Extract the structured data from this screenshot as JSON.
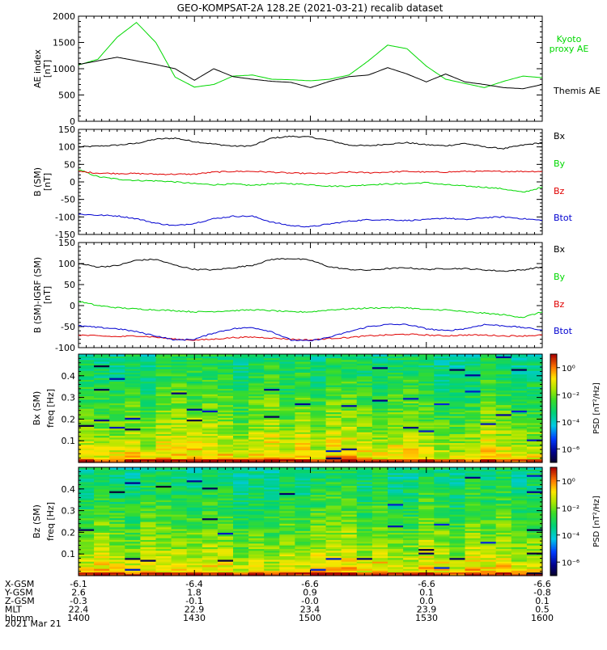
{
  "title": "GEO-KOMPSAT-2A 128.2E (2021-03-21) recalib dataset",
  "date_label": "2021 Mar 21",
  "colors": {
    "black": "#000000",
    "green": "#00d800",
    "red": "#e00000",
    "blue": "#0000d0"
  },
  "ephemeris": {
    "rows": [
      {
        "label": "X-GSM",
        "values": [
          "-6.1",
          "-6.4",
          "-6.6",
          "-6.6",
          "-6.6"
        ]
      },
      {
        "label": "Y-GSM",
        "values": [
          "2.6",
          "1.8",
          "0.9",
          "0.1",
          "-0.8"
        ]
      },
      {
        "label": "Z-GSM",
        "values": [
          "-0.3",
          "-0.1",
          "-0.0",
          "0.0",
          "0.1"
        ]
      },
      {
        "label": "MLT",
        "values": [
          "22.4",
          "22.9",
          "23.4",
          "23.9",
          "0.5"
        ]
      },
      {
        "label": "hhmm",
        "values": [
          "1400",
          "1430",
          "1500",
          "1530",
          "1600"
        ]
      }
    ]
  },
  "chart_data": [
    {
      "type": "line",
      "ylabel": "AE index",
      "yunit": "[nT]",
      "ylim": [
        0,
        2000
      ],
      "yticks": [
        "0",
        "500",
        "1000",
        "1500",
        "2000"
      ],
      "x": [
        1400,
        1405,
        1410,
        1415,
        1420,
        1425,
        1430,
        1435,
        1440,
        1445,
        1450,
        1455,
        1500,
        1505,
        1510,
        1515,
        1520,
        1525,
        1530,
        1535,
        1540,
        1545,
        1550,
        1555,
        1600
      ],
      "series": [
        {
          "name": "Kyoto proxy AE",
          "color": "green",
          "values": [
            1070,
            1180,
            1600,
            1880,
            1500,
            840,
            650,
            700,
            860,
            880,
            800,
            790,
            770,
            800,
            880,
            1150,
            1450,
            1380,
            1050,
            800,
            720,
            640,
            760,
            860,
            830
          ]
        },
        {
          "name": "Themis AE",
          "color": "black",
          "values": [
            1080,
            1150,
            1220,
            1150,
            1080,
            1000,
            780,
            1000,
            850,
            800,
            760,
            740,
            640,
            760,
            850,
            880,
            1020,
            900,
            750,
            900,
            750,
            700,
            640,
            620,
            700
          ]
        }
      ]
    },
    {
      "type": "line",
      "ylabel": "B (SM)",
      "yunit": "[nT]",
      "ylim": [
        -150,
        150
      ],
      "yticks": [
        "-150",
        "-100",
        "-50",
        "0",
        "50",
        "100",
        "150"
      ],
      "x": [
        1400,
        1405,
        1410,
        1415,
        1420,
        1425,
        1430,
        1435,
        1440,
        1445,
        1450,
        1455,
        1500,
        1505,
        1510,
        1515,
        1520,
        1525,
        1530,
        1535,
        1540,
        1545,
        1550,
        1555,
        1600
      ],
      "series": [
        {
          "name": "Bx",
          "color": "black",
          "values": [
            100,
            102,
            105,
            110,
            122,
            125,
            115,
            108,
            102,
            103,
            125,
            130,
            128,
            118,
            105,
            103,
            108,
            112,
            106,
            103,
            110,
            100,
            95,
            105,
            112
          ]
        },
        {
          "name": "By",
          "color": "green",
          "values": [
            35,
            15,
            8,
            4,
            3,
            0,
            -5,
            -8,
            -6,
            -10,
            -5,
            -5,
            -8,
            -12,
            -12,
            -8,
            -6,
            -5,
            -2,
            -8,
            -12,
            -15,
            -20,
            -30,
            -15
          ]
        },
        {
          "name": "Bz",
          "color": "red",
          "values": [
            30,
            25,
            24,
            24,
            22,
            22,
            22,
            28,
            30,
            30,
            28,
            25,
            24,
            24,
            28,
            26,
            28,
            30,
            28,
            28,
            30,
            30,
            30,
            30,
            30
          ]
        },
        {
          "name": "Btot",
          "color": "blue",
          "values": [
            -92,
            -95,
            -97,
            -105,
            -118,
            -125,
            -118,
            -105,
            -98,
            -98,
            -115,
            -125,
            -128,
            -120,
            -112,
            -108,
            -108,
            -110,
            -108,
            -103,
            -108,
            -102,
            -100,
            -105,
            -110
          ]
        }
      ]
    },
    {
      "type": "line",
      "ylabel": "B (SM)-IGRF (SM)",
      "yunit": "[nT]",
      "ylim": [
        -100,
        150
      ],
      "yticks": [
        "-100",
        "-50",
        "0",
        "50",
        "100",
        "150"
      ],
      "x": [
        1400,
        1405,
        1410,
        1415,
        1420,
        1425,
        1430,
        1435,
        1440,
        1445,
        1450,
        1455,
        1500,
        1505,
        1510,
        1515,
        1520,
        1525,
        1530,
        1535,
        1540,
        1545,
        1550,
        1555,
        1600
      ],
      "series": [
        {
          "name": "Bx",
          "color": "black",
          "values": [
            100,
            92,
            95,
            108,
            110,
            96,
            86,
            85,
            90,
            96,
            110,
            112,
            108,
            92,
            86,
            84,
            88,
            90,
            86,
            88,
            88,
            85,
            82,
            85,
            92
          ]
        },
        {
          "name": "By",
          "color": "green",
          "values": [
            10,
            0,
            -5,
            -8,
            -10,
            -12,
            -15,
            -14,
            -12,
            -10,
            -12,
            -15,
            -15,
            -10,
            -8,
            -6,
            -5,
            -5,
            -10,
            -10,
            -15,
            -18,
            -22,
            -28,
            -15
          ]
        },
        {
          "name": "Bz",
          "color": "red",
          "values": [
            -70,
            -72,
            -74,
            -72,
            -75,
            -80,
            -82,
            -80,
            -76,
            -75,
            -77,
            -80,
            -82,
            -78,
            -76,
            -72,
            -70,
            -68,
            -70,
            -72,
            -70,
            -70,
            -72,
            -72,
            -70
          ]
        },
        {
          "name": "Btot",
          "color": "blue",
          "values": [
            -48,
            -52,
            -55,
            -62,
            -72,
            -82,
            -80,
            -65,
            -55,
            -52,
            -62,
            -82,
            -84,
            -75,
            -62,
            -50,
            -45,
            -45,
            -55,
            -60,
            -55,
            -45,
            -48,
            -52,
            -58
          ]
        }
      ]
    },
    {
      "type": "heatmap",
      "ylabel": "Bx (SM)",
      "yunit": "freq [Hz]",
      "ylim": [
        0,
        0.5
      ],
      "yticks": [
        "0.1",
        "0.2",
        "0.3",
        "0.4"
      ],
      "colorbar_label": "PSD [nT²/Hz]",
      "colorbar_ticks": [
        "10⁰",
        "10⁻²",
        "10⁻⁴",
        "10⁻⁶"
      ],
      "colorbar_powers": [
        0,
        -2,
        -4,
        -6
      ],
      "colorbar_range": [
        -7,
        1
      ],
      "columns": 30,
      "rows": 60
    },
    {
      "type": "heatmap",
      "ylabel": "Bz (SM)",
      "yunit": "freq [Hz]",
      "ylim": [
        0,
        0.5
      ],
      "yticks": [
        "0.1",
        "0.2",
        "0.3",
        "0.4"
      ],
      "colorbar_label": "PSD [nT²/Hz]",
      "colorbar_ticks": [
        "10⁰",
        "10⁻²",
        "10⁻⁴",
        "10⁻⁶"
      ],
      "colorbar_powers": [
        0,
        -2,
        -4,
        -6
      ],
      "colorbar_range": [
        -7,
        1
      ],
      "columns": 30,
      "rows": 60
    }
  ]
}
